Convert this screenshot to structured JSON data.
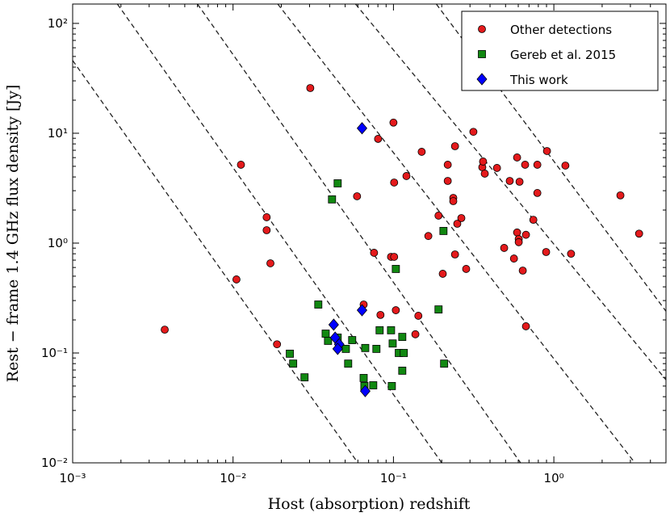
{
  "chart_data": {
    "type": "scatter",
    "xlabel": "Host (absorption) redshift",
    "ylabel": "Rest − frame 1.4 GHz flux density [Jy]",
    "xscale": "log",
    "yscale": "log",
    "xlim": [
      0.001,
      5
    ],
    "ylim": [
      0.01,
      150
    ],
    "xticks": [
      {
        "value": 0.001,
        "label": "10⁻³"
      },
      {
        "value": 0.01,
        "label": "10⁻²"
      },
      {
        "value": 0.1,
        "label": "10⁻¹"
      },
      {
        "value": 1,
        "label": "10⁰"
      }
    ],
    "yticks": [
      {
        "value": 0.01,
        "label": "10⁻²"
      },
      {
        "value": 0.1,
        "label": "10⁻¹"
      },
      {
        "value": 1,
        "label": "10⁰"
      },
      {
        "value": 10,
        "label": "10¹"
      },
      {
        "value": 100,
        "label": "10²"
      }
    ],
    "legend": "upper right",
    "reference_lines": [
      {
        "x": [
          0.001,
          0.06
        ],
        "y": [
          46,
          0.01
        ]
      },
      {
        "x": [
          0.0019,
          0.2
        ],
        "y": [
          150,
          0.01
        ]
      },
      {
        "x": [
          0.006,
          0.62
        ],
        "y": [
          150,
          0.01
        ]
      },
      {
        "x": [
          0.019,
          3.2
        ],
        "y": [
          150,
          0.01
        ]
      },
      {
        "x": [
          0.058,
          5
        ],
        "y": [
          150,
          0.057
        ]
      },
      {
        "x": [
          0.185,
          5
        ],
        "y": [
          150,
          0.24
        ]
      }
    ],
    "series": [
      {
        "name": "Other detections",
        "color": "#e41a1c",
        "marker": "circle",
        "x": [
          0.00375,
          0.0105,
          0.0112,
          0.0162,
          0.0162,
          0.0171,
          0.0188,
          0.0303,
          0.0593,
          0.0652,
          0.0757,
          0.0802,
          0.083,
          0.0966,
          0.1,
          0.101,
          0.101,
          0.1035,
          0.1205,
          0.137,
          0.143,
          0.15,
          0.165,
          0.191,
          0.203,
          0.218,
          0.218,
          0.236,
          0.236,
          0.242,
          0.25,
          0.265,
          0.242,
          0.284,
          0.315,
          0.358,
          0.362,
          0.371,
          0.442,
          0.49,
          0.531,
          0.564,
          0.59,
          0.59,
          0.604,
          0.604,
          0.611,
          0.64,
          0.662,
          0.67,
          0.67,
          0.745,
          0.789,
          0.789,
          0.906,
          0.895,
          1.18,
          1.28,
          2.6,
          3.4
        ],
        "y": [
          0.163,
          0.467,
          5.17,
          1.72,
          1.31,
          0.655,
          0.12,
          25.8,
          2.67,
          0.276,
          0.817,
          8.89,
          0.222,
          0.75,
          12.5,
          3.56,
          0.75,
          0.245,
          4.08,
          0.148,
          0.218,
          6.78,
          1.16,
          1.78,
          0.526,
          5.17,
          3.68,
          2.58,
          2.41,
          7.62,
          1.5,
          1.69,
          0.789,
          0.582,
          10.3,
          4.91,
          5.53,
          4.29,
          4.83,
          0.904,
          3.68,
          0.724,
          6.02,
          1.25,
          1.09,
          1.02,
          3.62,
          0.562,
          5.17,
          1.19,
          0.175,
          1.63,
          5.17,
          2.86,
          6.89,
          0.83,
          5.08,
          0.8,
          2.72,
          1.22
        ]
      },
      {
        "name": "Gereb et al. 2015",
        "color": "#118811",
        "marker": "square",
        "x": [
          0.0226,
          0.0237,
          0.0279,
          0.034,
          0.0378,
          0.0391,
          0.0414,
          0.0449,
          0.0449,
          0.0505,
          0.0553,
          0.0522,
          0.0652,
          0.0659,
          0.0667,
          0.0748,
          0.0783,
          0.082,
          0.0966,
          0.0977,
          0.0989,
          0.1035,
          0.108,
          0.1135,
          0.116,
          0.191,
          0.205,
          0.207,
          0.1135
        ],
        "y": [
          0.0985,
          0.08,
          0.06,
          0.276,
          0.15,
          0.129,
          2.5,
          3.5,
          0.138,
          0.109,
          0.131,
          0.08,
          0.0592,
          0.05,
          0.111,
          0.0508,
          0.109,
          0.161,
          0.161,
          0.05,
          0.122,
          0.582,
          0.1,
          0.069,
          0.1,
          0.249,
          1.29,
          0.08,
          0.14
        ]
      },
      {
        "name": "This work",
        "color": "#0000ff",
        "marker": "diamond",
        "x": [
          0.0637,
          0.0637,
          0.0424,
          0.0433,
          0.0459,
          0.0449,
          0.0667
        ],
        "y": [
          11.1,
          0.245,
          0.181,
          0.138,
          0.12,
          0.109,
          0.045
        ]
      }
    ]
  }
}
